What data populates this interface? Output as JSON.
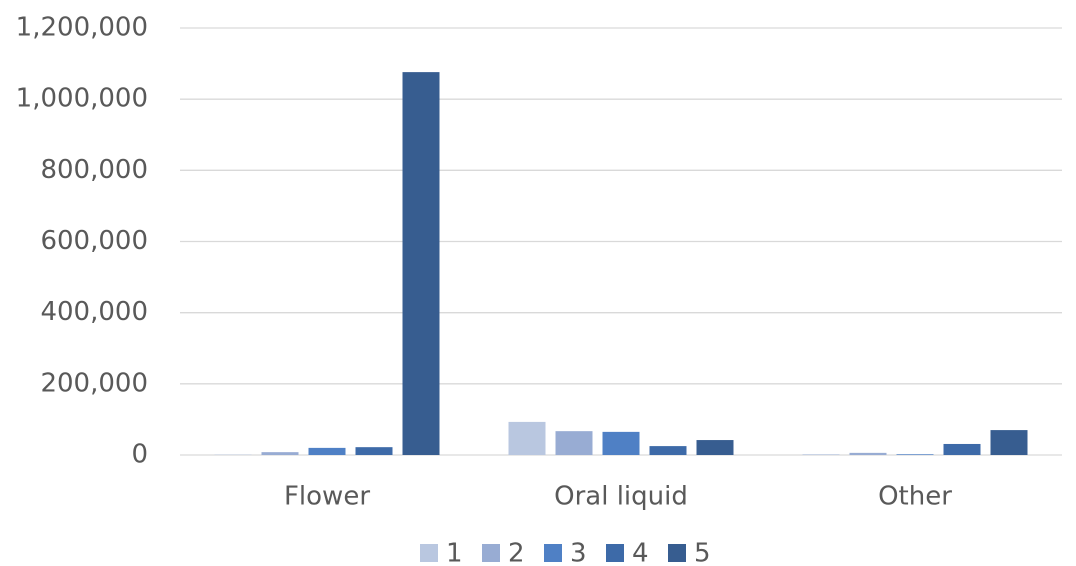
{
  "chart_data": {
    "type": "bar",
    "categories": [
      "Flower",
      "Oral liquid",
      "Other"
    ],
    "series": [
      {
        "name": "1",
        "color": "#b9c7e0",
        "values": [
          1000,
          93000,
          2000
        ]
      },
      {
        "name": "2",
        "color": "#98acd3",
        "values": [
          8000,
          67000,
          6000
        ]
      },
      {
        "name": "3",
        "color": "#4f80c5",
        "values": [
          20000,
          65000,
          2000
        ]
      },
      {
        "name": "4",
        "color": "#3d6aa8",
        "values": [
          22000,
          25000,
          31000
        ]
      },
      {
        "name": "5",
        "color": "#375d90",
        "values": [
          1076000,
          42000,
          70000
        ]
      }
    ],
    "ylim": [
      0,
      1200000
    ],
    "yticks": [
      0,
      {
        "value": 200000,
        "label": "200,000"
      },
      {
        "value": 400000,
        "label": "400,000"
      },
      {
        "value": 600000,
        "label": "600,000"
      },
      {
        "value": 800000,
        "label": "800,000"
      },
      {
        "value": 1000000,
        "label": "1,000,000"
      },
      {
        "value": 1200000,
        "label": "1,200,000"
      }
    ],
    "grid": true,
    "legend": "bottom"
  }
}
